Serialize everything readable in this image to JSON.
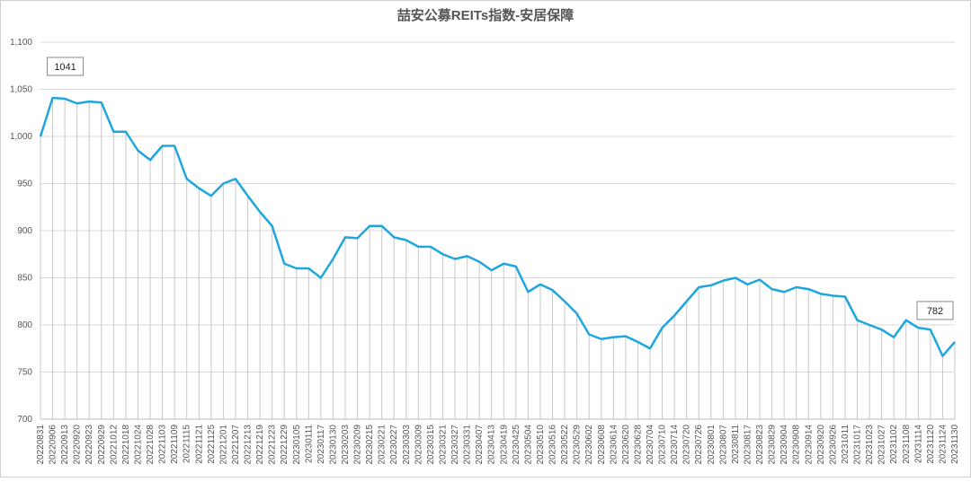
{
  "chart_data": {
    "type": "line",
    "title": "喆安公募REITs指数-安居保障",
    "categories": [
      "20220831",
      "20220906",
      "20220913",
      "20220920",
      "20220923",
      "20220929",
      "20221012",
      "20221018",
      "20221024",
      "20221028",
      "20221103",
      "20221109",
      "20221115",
      "20221121",
      "20221125",
      "20221201",
      "20221207",
      "20221213",
      "20221219",
      "20221223",
      "20221229",
      "20230105",
      "20230111",
      "20230117",
      "20230130",
      "20230203",
      "20230209",
      "20230215",
      "20230221",
      "20230227",
      "20230303",
      "20230309",
      "20230315",
      "20230321",
      "20230327",
      "20230331",
      "20230407",
      "20230413",
      "20230419",
      "20230425",
      "20230504",
      "20230510",
      "20230516",
      "20230522",
      "20230529",
      "20230602",
      "20230608",
      "20230614",
      "20230620",
      "20230628",
      "20230704",
      "20230710",
      "20230714",
      "20230720",
      "20230726",
      "20230801",
      "20230807",
      "20230811",
      "20230817",
      "20230823",
      "20230829",
      "20230904",
      "20230908",
      "20230914",
      "20230920",
      "20230926",
      "20231011",
      "20231017",
      "20231023",
      "20231027",
      "20231102",
      "20231108",
      "20231114",
      "20231120",
      "20231124",
      "20231130"
    ],
    "values": [
      1000,
      1041,
      1040,
      1035,
      1037,
      1036,
      1005,
      1005,
      985,
      975,
      990,
      990,
      955,
      945,
      937,
      950,
      955,
      937,
      920,
      905,
      865,
      860,
      860,
      850,
      870,
      893,
      892,
      905,
      905,
      893,
      890,
      883,
      883,
      875,
      870,
      873,
      867,
      858,
      865,
      862,
      835,
      843,
      837,
      825,
      812,
      790,
      785,
      787,
      788,
      782,
      775,
      797,
      810,
      825,
      840,
      842,
      847,
      850,
      843,
      848,
      838,
      835,
      840,
      838,
      833,
      831,
      830,
      805,
      800,
      795,
      787,
      805,
      797,
      795,
      767,
      782
    ],
    "color": "#1ea7df",
    "drop_line_color": "#c8c8c8",
    "ylim": [
      700,
      1100
    ],
    "yticks": [
      700,
      750,
      800,
      850,
      900,
      950,
      {
        "value": 1000,
        "label": "1,000"
      },
      {
        "value": 1050,
        "label": "1,050"
      },
      {
        "value": 1100,
        "label": "1,100"
      }
    ],
    "grid": true,
    "annotations": [
      {
        "index": 1,
        "value": 1041
      },
      {
        "index": 75,
        "value": 782
      }
    ]
  }
}
